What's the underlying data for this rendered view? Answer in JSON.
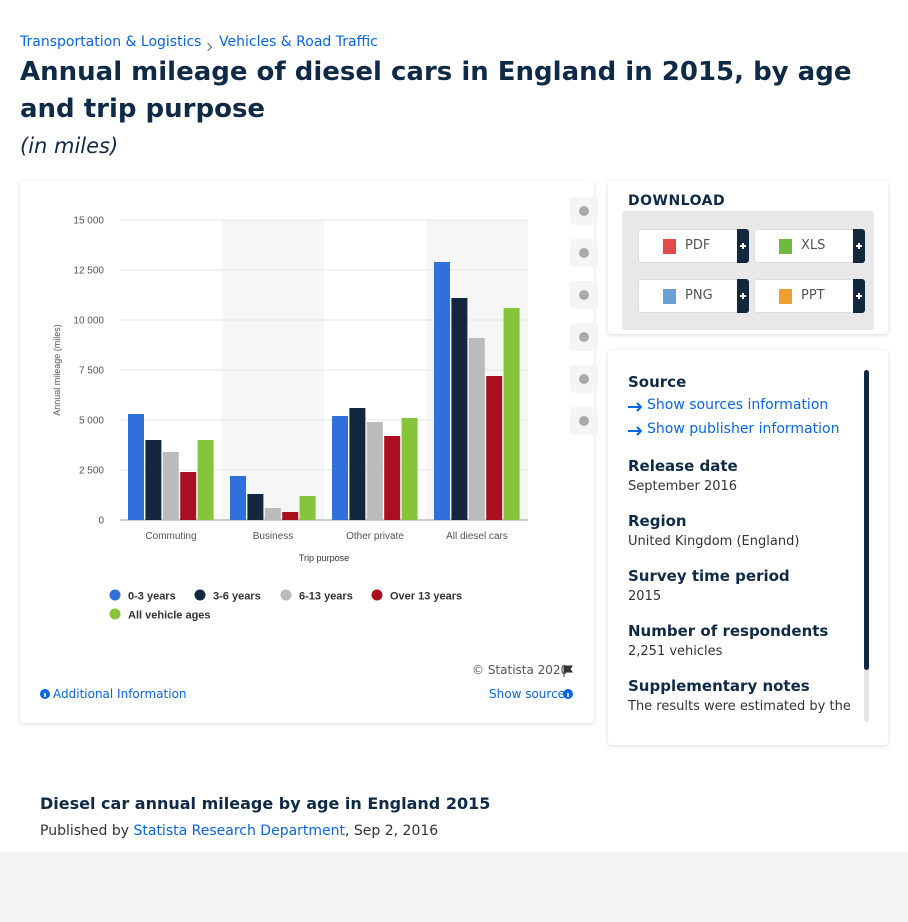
{
  "breadcrumbs": [
    "Transportation & Logistics",
    "Vehicles & Road Traffic"
  ],
  "title": "Annual mileage of diesel cars in England in 2015, by age and trip purpose",
  "subtitle": "(in miles)",
  "chart_data": {
    "type": "bar",
    "categories": [
      "Commuting",
      "Business",
      "Other private",
      "All diesel cars"
    ],
    "series": [
      {
        "name": "0-3 years",
        "color": "#3070da",
        "values": [
          5300,
          2200,
          5200,
          12900
        ]
      },
      {
        "name": "3-6 years",
        "color": "#13273f",
        "values": [
          4000,
          1300,
          5600,
          11100
        ]
      },
      {
        "name": "6-13 years",
        "color": "#bbbbbb",
        "values": [
          3400,
          600,
          4900,
          9100
        ]
      },
      {
        "name": "Over 13 years",
        "color": "#a90f1f",
        "values": [
          2400,
          400,
          4200,
          7200
        ]
      },
      {
        "name": "All vehicle ages",
        "color": "#86c43c",
        "values": [
          4000,
          1200,
          5100,
          10600
        ]
      }
    ],
    "ylim": [
      0,
      15000
    ],
    "yticks": [
      0,
      {
        "value": 2500,
        "label": "2 500"
      },
      {
        "value": 5000,
        "label": "5 000"
      },
      {
        "value": 7500,
        "label": "7 500"
      },
      {
        "value": 10000,
        "label": "10 000"
      },
      {
        "value": 12500,
        "label": "12 500"
      },
      {
        "value": 15000,
        "label": "15 000"
      }
    ],
    "xlabel": "Trip purpose",
    "ylabel": "Annual mileage (miles)",
    "grid": true,
    "legend": "bottom"
  },
  "chart_footer": {
    "copyright": "© Statista 2020",
    "additional": "Additional Information",
    "show_source": "Show source"
  },
  "download": {
    "heading": "DOWNLOAD",
    "formats": [
      "PDF",
      "XLS",
      "PNG",
      "PPT"
    ]
  },
  "details": {
    "source_heading": "Source",
    "links": [
      "Show sources information",
      "Show publisher information"
    ],
    "items": [
      {
        "label": "Release date",
        "value": "September 2016"
      },
      {
        "label": "Region",
        "value": "United Kingdom (England)"
      },
      {
        "label": "Survey time period",
        "value": "2015"
      },
      {
        "label": "Number of respondents",
        "value": "2,251 vehicles"
      },
      {
        "label": "Supplementary notes",
        "value": "The results were estimated by the"
      }
    ]
  },
  "article": {
    "title": "Diesel car annual mileage by age in England 2015",
    "prefix": "Published by",
    "author": "Statista Research Department",
    "date": ", Sep 2, 2016"
  }
}
